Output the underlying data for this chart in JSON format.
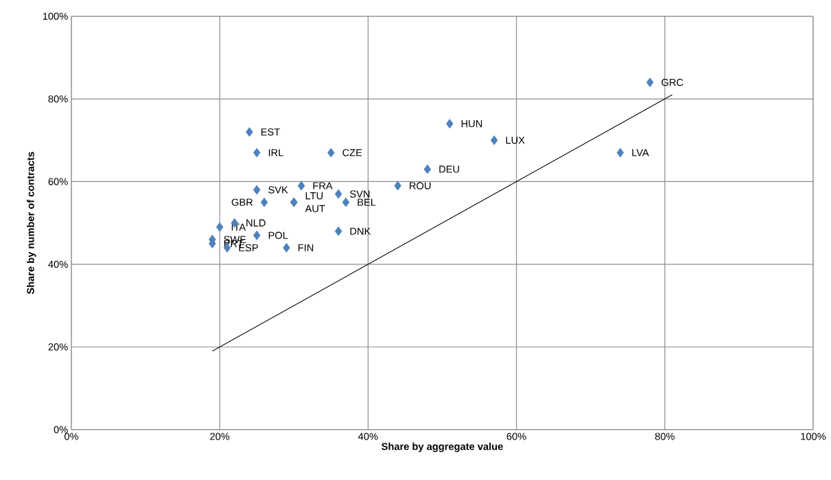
{
  "chart_data": {
    "type": "scatter",
    "xlabel": "Share by aggregate value",
    "ylabel": "Share by number of contracts",
    "series": [
      {
        "color": "#4f81bd",
        "marker": "diamond",
        "x": [
          78,
          51,
          57,
          74,
          24,
          25,
          35,
          48,
          44,
          31,
          25,
          36,
          37,
          26,
          30,
          30,
          36,
          29,
          22,
          20,
          25,
          19,
          19,
          21
        ],
        "values": [
          84,
          74,
          70,
          67,
          72,
          67,
          67,
          63,
          59,
          59,
          58,
          57,
          55,
          55,
          55,
          55,
          48,
          44,
          50,
          49,
          47,
          46,
          45,
          44
        ]
      },
      {
        "type": "line",
        "color": "#000000",
        "marker": "none",
        "x": [
          19,
          81
        ],
        "values": [
          19,
          81
        ]
      }
    ],
    "annotations": [
      {
        "text": "GRC",
        "x": 78,
        "y": 84
      },
      {
        "text": "HUN",
        "x": 51,
        "y": 74
      },
      {
        "text": "LUX",
        "x": 57,
        "y": 70
      },
      {
        "text": "LVA",
        "x": 74,
        "y": 67
      },
      {
        "text": "EST",
        "x": 24,
        "y": 72
      },
      {
        "text": "IRL",
        "x": 25,
        "y": 67
      },
      {
        "text": "CZE",
        "x": 35,
        "y": 67
      },
      {
        "text": "DEU",
        "x": 48,
        "y": 63
      },
      {
        "text": "ROU",
        "x": 44,
        "y": 59
      },
      {
        "text": "FRA",
        "x": 31,
        "y": 59
      },
      {
        "text": "SVK",
        "x": 25,
        "y": 58
      },
      {
        "text": "SVN",
        "x": 36,
        "y": 57
      },
      {
        "text": "BEL",
        "x": 37,
        "y": 55
      },
      {
        "text": "GBR",
        "x": 26,
        "y": 55
      },
      {
        "text": "LTU",
        "x": 30,
        "y": 55
      },
      {
        "text": "AUT",
        "x": 30,
        "y": 55
      },
      {
        "text": "DNK",
        "x": 36,
        "y": 48
      },
      {
        "text": "FIN",
        "x": 29,
        "y": 44
      },
      {
        "text": "NLD",
        "x": 22,
        "y": 50
      },
      {
        "text": "ITA",
        "x": 20,
        "y": 49
      },
      {
        "text": "POL",
        "x": 25,
        "y": 47
      },
      {
        "text": "SWE",
        "x": 19,
        "y": 46
      },
      {
        "text": "PRT",
        "x": 19,
        "y": 45
      },
      {
        "text": "ESP",
        "x": 21,
        "y": 44
      }
    ],
    "xlim": [
      0,
      100
    ],
    "ylim": [
      0,
      100
    ],
    "xticks": [
      {
        "value": 0,
        "label": "0%"
      },
      {
        "value": 20,
        "label": "20%"
      },
      {
        "value": 40,
        "label": "40%"
      },
      {
        "value": 60,
        "label": "60%"
      },
      {
        "value": 80,
        "label": "80%"
      },
      {
        "value": 100,
        "label": "100%"
      }
    ],
    "yticks": [
      {
        "value": 0,
        "label": "0%"
      },
      {
        "value": 20,
        "label": "20%"
      },
      {
        "value": 40,
        "label": "40%"
      },
      {
        "value": 60,
        "label": "60%"
      },
      {
        "value": 80,
        "label": "80%"
      },
      {
        "value": 100,
        "label": "100%"
      }
    ],
    "grid": true
  }
}
